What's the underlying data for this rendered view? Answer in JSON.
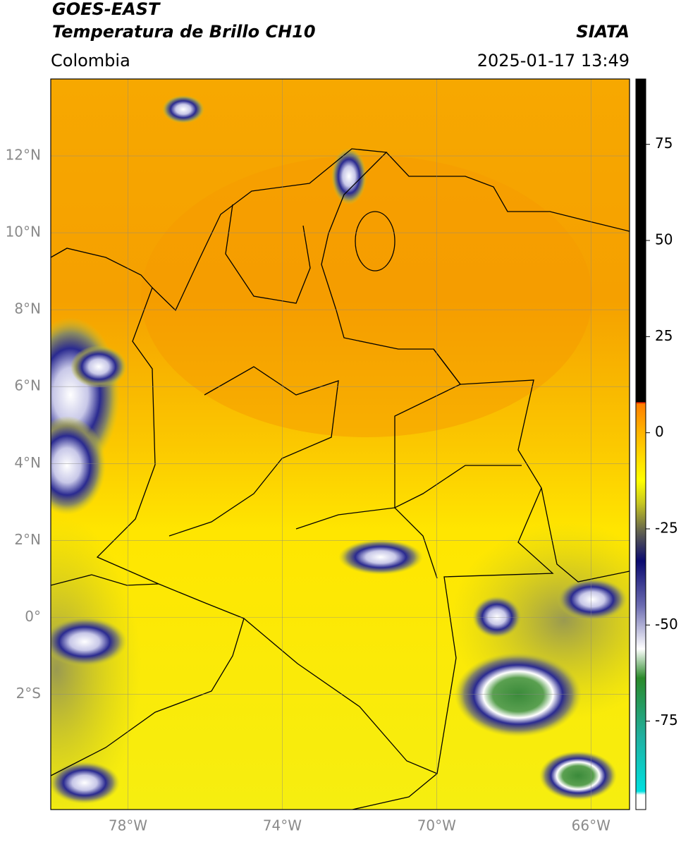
{
  "header": {
    "title": "GOES-EAST",
    "subtitle": "Temperatura de Brillo CH10",
    "region": "Colombia",
    "source": "SIATA",
    "datetime": "2025-01-17 13:49"
  },
  "map": {
    "xlim": [
      -80,
      -65
    ],
    "ylim": [
      -5,
      14
    ],
    "xticks": [
      {
        "value": -78,
        "label": "78°W"
      },
      {
        "value": -74,
        "label": "74°W"
      },
      {
        "value": -70,
        "label": "70°W"
      },
      {
        "value": -66,
        "label": "66°W"
      }
    ],
    "yticks": [
      {
        "value": 12,
        "label": "12°N"
      },
      {
        "value": 10,
        "label": "10°N"
      },
      {
        "value": 8,
        "label": "8°N"
      },
      {
        "value": 6,
        "label": "6°N"
      },
      {
        "value": 4,
        "label": "4°N"
      },
      {
        "value": 2,
        "label": "2°N"
      },
      {
        "value": 0,
        "label": "0°"
      },
      {
        "value": -2,
        "label": "2°S"
      }
    ],
    "grid": true
  },
  "colorbar": {
    "lim": [
      -98,
      92
    ],
    "ticks": [
      75,
      50,
      25,
      0,
      -25,
      -50,
      -75
    ]
  }
}
